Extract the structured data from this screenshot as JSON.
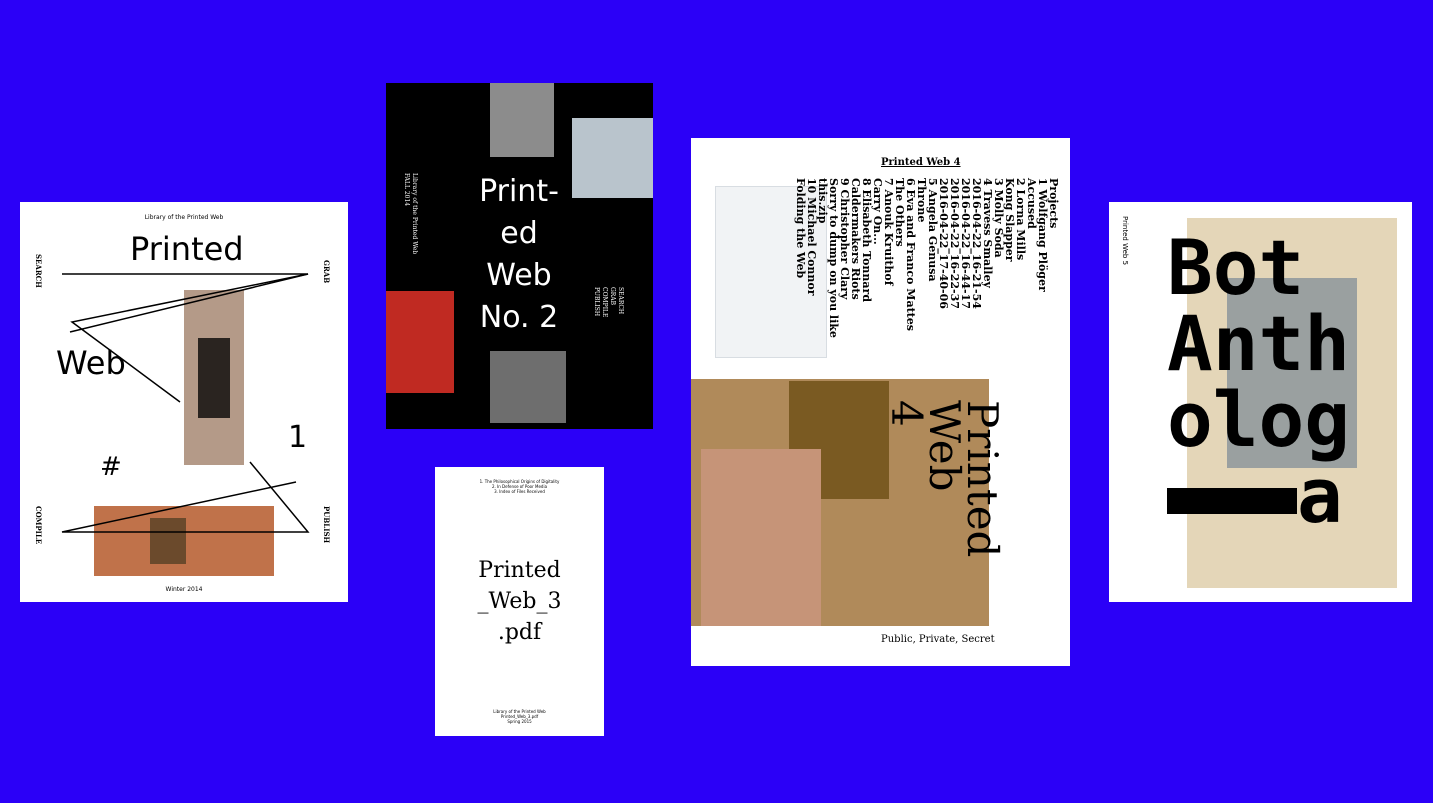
{
  "covers": [
    {
      "imprint": "Library of the Printed Web",
      "title_1": "Printed",
      "title_2": "Web",
      "number": "1",
      "hash": "#",
      "left_top": "SEARCH",
      "right_top": "GRAB",
      "left_bottom": "COMPILE",
      "right_bottom": "PUBLISH",
      "season": "Winter 2014"
    },
    {
      "spine": "Library of the Printed Web",
      "season": "FALL 2014",
      "title_lines": [
        "Print-",
        "ed",
        "Web",
        "No. 2"
      ],
      "verbs": [
        "SEARCH",
        "GRAB",
        "COMPILE",
        "PUBLISH"
      ]
    },
    {
      "contents": [
        "1. The Philosophical Origins of Digitality",
        "2. In Defense of Poor Media",
        "3. Index of Files Received"
      ],
      "title_lines": [
        "Printed",
        "_Web_3",
        ".pdf"
      ],
      "footer": [
        "Library of the Printed Web",
        "Printed_Web_3.pdf",
        "Spring 2015"
      ]
    },
    {
      "heading": "Printed Web 4",
      "list": [
        "Projects",
        "1 Wolfgang Plöger",
        "Accused",
        "2 Lorna Mills",
        "Kong Slapper",
        "3 Molly Soda",
        "4 Travess Smalley",
        "2016-04-22_16-21-54",
        "2016-04-22_16-44-17",
        "2016-04-22_16-22-37",
        "2016-04-22_17-40-06",
        "5 Angela Genusa",
        "Throne",
        "6 Eva and Franco Mattes",
        "The Others",
        "7 Anouk Kruithof",
        "Carry On...",
        "8 Elisabeth Tonnard",
        "Caldermakers Riots",
        "9 Christopher Clary",
        "Sorry to dump on you like this.zip",
        "10 Michael Connor",
        "Folding the Web"
      ],
      "title_lines": [
        "Printed",
        "Web",
        "4"
      ],
      "subtitle": "Public, Private, Secret"
    },
    {
      "spine": "Printed Web 5",
      "title_lines": [
        "Bot",
        "Anth",
        "olog",
        "a"
      ]
    }
  ]
}
